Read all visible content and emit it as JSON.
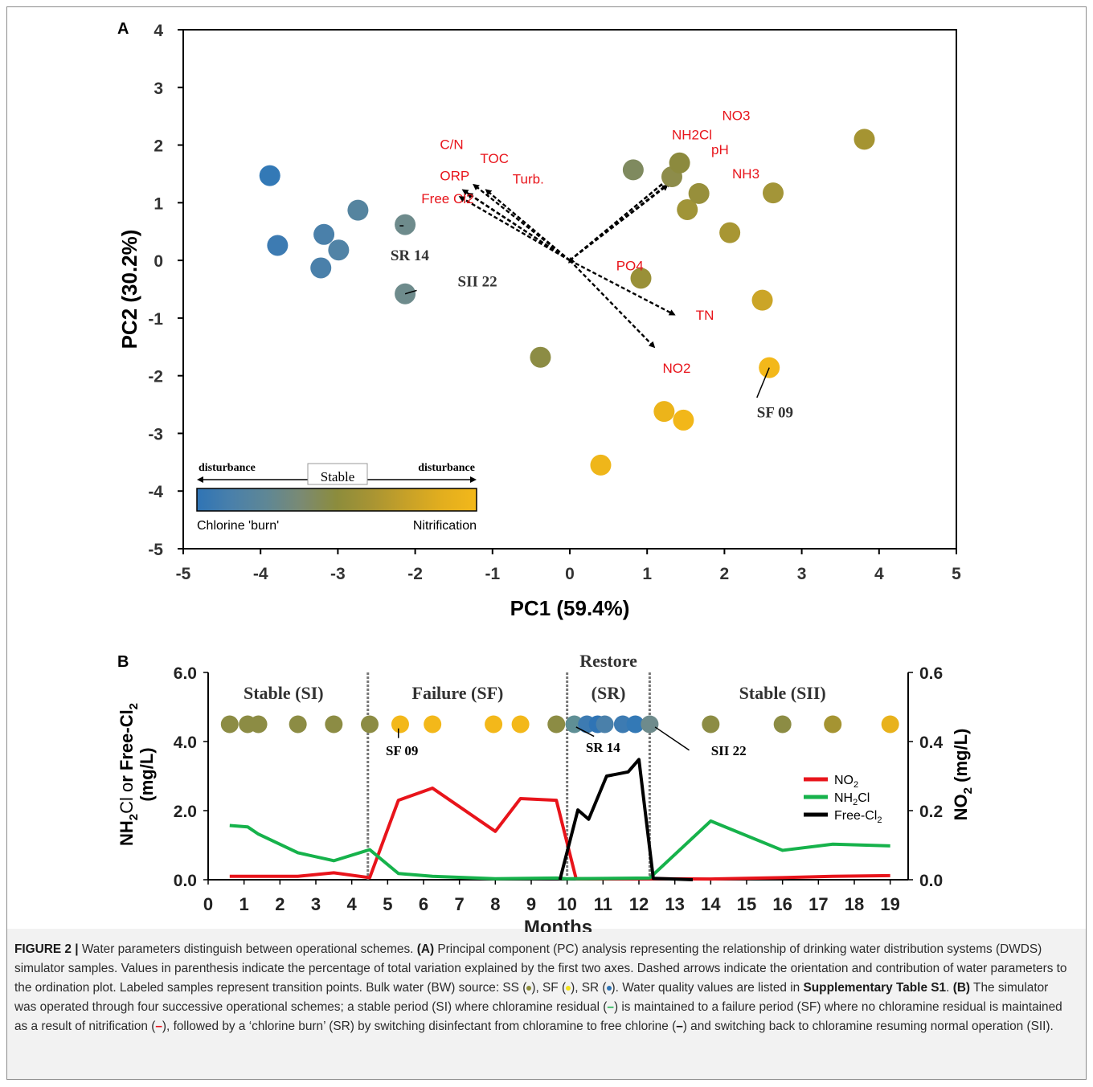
{
  "colors": {
    "ss": "#8c8c3c",
    "sf": "#f3b81a",
    "sr": "#2f74b5",
    "no2": "#e8141b",
    "nh2cl": "#16b24b",
    "free_cl2": "#000000",
    "loading_label": "#e8141b",
    "sample_label": "#333333"
  },
  "chart_data": [
    {
      "id": "A",
      "type": "scatter",
      "panel_label": "A",
      "xlabel": "PC1 (59.4%)",
      "ylabel": "PC2 (30.2%)",
      "xlim": [
        -5,
        5
      ],
      "ylim": [
        -5,
        4
      ],
      "xticks": [
        "-5",
        "-4",
        "-3",
        "-2",
        "-1",
        "0",
        "1",
        "2",
        "3",
        "4",
        "5"
      ],
      "yticks": [
        "-5",
        "-4",
        "-3",
        "-2",
        "-1",
        "0",
        "1",
        "2",
        "3",
        "4"
      ],
      "points": [
        {
          "x": -3.88,
          "y": 1.47,
          "color": "#3379b6"
        },
        {
          "x": -3.78,
          "y": 0.26,
          "color": "#3d7bb2"
        },
        {
          "x": -3.18,
          "y": 0.45,
          "color": "#4a80aa"
        },
        {
          "x": -3.22,
          "y": -0.13,
          "color": "#4a80aa"
        },
        {
          "x": -2.99,
          "y": 0.18,
          "color": "#5183a6"
        },
        {
          "x": -2.74,
          "y": 0.87,
          "color": "#55849f"
        },
        {
          "x": -2.13,
          "y": 0.62,
          "color": "#6e8b8c"
        },
        {
          "x": -2.13,
          "y": -0.58,
          "color": "#6e8b8c"
        },
        {
          "x": -0.38,
          "y": -1.68,
          "color": "#8c8c44"
        },
        {
          "x": 0.82,
          "y": 1.57,
          "color": "#7f8a5f"
        },
        {
          "x": 0.92,
          "y": -0.31,
          "color": "#999038"
        },
        {
          "x": 1.32,
          "y": 1.45,
          "color": "#8d8c4a"
        },
        {
          "x": 1.42,
          "y": 1.69,
          "color": "#8c8a3e"
        },
        {
          "x": 1.52,
          "y": 0.88,
          "color": "#a09438"
        },
        {
          "x": 1.67,
          "y": 1.16,
          "color": "#978f3b"
        },
        {
          "x": 2.07,
          "y": 0.48,
          "color": "#a89633"
        },
        {
          "x": 2.63,
          "y": 1.17,
          "color": "#a39538"
        },
        {
          "x": 2.49,
          "y": -0.69,
          "color": "#cba527"
        },
        {
          "x": 3.81,
          "y": 2.1,
          "color": "#a59432"
        },
        {
          "x": 2.58,
          "y": -1.86,
          "color": "#f3b81a"
        },
        {
          "x": 1.22,
          "y": -2.62,
          "color": "#ecb41a"
        },
        {
          "x": 1.47,
          "y": -2.77,
          "color": "#f2b719"
        },
        {
          "x": 0.4,
          "y": -3.55,
          "color": "#efb61a"
        }
      ],
      "loadings": [
        {
          "label": "C/N",
          "x": -1.24,
          "y": 1.31,
          "lx": -1.68,
          "ly": 1.93
        },
        {
          "label": "TOC",
          "x": -1.08,
          "y": 1.22,
          "lx": -1.16,
          "ly": 1.69
        },
        {
          "label": "ORP",
          "x": -1.38,
          "y": 1.22,
          "lx": -1.68,
          "ly": 1.39
        },
        {
          "label": "Turb.",
          "x": -1.32,
          "y": 1.16,
          "lx": -0.74,
          "ly": 1.33
        },
        {
          "label": "Free Cl2",
          "x": -1.42,
          "y": 1.1,
          "lx": -1.92,
          "ly": 0.99
        },
        {
          "label": "NH2Cl",
          "x": 1.28,
          "y": 1.42,
          "lx": 1.32,
          "ly": 2.1
        },
        {
          "label": "NO3",
          "x": 1.3,
          "y": 1.36,
          "lx": 1.97,
          "ly": 2.43
        },
        {
          "label": "pH",
          "x": 1.26,
          "y": 1.3,
          "lx": 1.83,
          "ly": 1.84
        },
        {
          "label": "NH3",
          "x": 1.32,
          "y": 1.46,
          "lx": 2.1,
          "ly": 1.42
        },
        {
          "label": "PO4",
          "x": 0.05,
          "y": -0.02,
          "lx": 0.6,
          "ly": -0.17
        },
        {
          "label": "TN",
          "x": 1.35,
          "y": -0.94,
          "lx": 1.63,
          "ly": -1.03
        },
        {
          "label": "NO2",
          "x": 1.09,
          "y": -1.5,
          "lx": 1.2,
          "ly": -1.95
        }
      ],
      "annotations": [
        {
          "text": "SR 14",
          "tx": -2.32,
          "ty": 0.0,
          "px": -2.2,
          "py": 0.6,
          "sx": -2.15,
          "sy": 0.6
        },
        {
          "text": "SII 22",
          "tx": -1.45,
          "ty": -0.45,
          "px": -1.98,
          "py": -0.52,
          "sx": -2.13,
          "sy": -0.58
        },
        {
          "text": "SF 09",
          "tx": 2.42,
          "ty": -2.72,
          "px": 2.42,
          "py": -2.38,
          "sx": 2.58,
          "sy": -1.86
        }
      ],
      "legend_bar": {
        "left_top": "disturbance",
        "center_top": "Stable",
        "right_top": "disturbance",
        "left_bottom": "Chlorine 'burn'",
        "right_bottom": "Nitrification",
        "gradient": [
          "#2f74b5",
          "#4a80aa",
          "#5f8795",
          "#7b8a72",
          "#8c8c3c",
          "#a89433",
          "#c7a128",
          "#e2ae1e",
          "#f3b81a"
        ]
      }
    },
    {
      "id": "B",
      "type": "line",
      "panel_label": "B",
      "xlabel": "Months",
      "ylabel_left": [
        "NH",
        "2",
        "Cl or Free-Cl",
        "2",
        "(mg/L)"
      ],
      "ylabel_right": [
        "NO",
        "2",
        " (mg/L)"
      ],
      "xlim": [
        0,
        19.5
      ],
      "ylim_left": [
        0,
        6
      ],
      "ylim_right": [
        0,
        0.6
      ],
      "xticks": [
        "0",
        "1",
        "2",
        "3",
        "4",
        "5",
        "6",
        "7",
        "8",
        "9",
        "10",
        "11",
        "12",
        "13",
        "14",
        "15",
        "16",
        "17",
        "18",
        "19"
      ],
      "yticks_left": [
        "0.0",
        "2.0",
        "4.0",
        "6.0"
      ],
      "yticks_right": [
        "0.0",
        "0.2",
        "0.4",
        "0.6"
      ],
      "phase_dividers": [
        4.45,
        10.0,
        12.3
      ],
      "phase_labels": [
        {
          "text": "Stable (SI)",
          "x": 2.1
        },
        {
          "text": "Failure (SF)",
          "x": 6.95
        },
        {
          "text": "(SR)",
          "x": 11.15
        },
        {
          "text": "Stable (SII)",
          "x": 16.0
        }
      ],
      "restore_label": {
        "text": "Restore",
        "x": 11.15
      },
      "series": [
        {
          "name": "NO2",
          "legend": [
            "NO",
            "2"
          ],
          "axis": "right",
          "color": "#e8141b",
          "x": [
            0.6,
            2.5,
            3.5,
            4.5,
            5.3,
            6.25,
            8.0,
            8.7,
            9.7,
            10.25,
            12.3,
            14.0,
            16.0,
            17.4,
            19.0
          ],
          "y": [
            0.01,
            0.01,
            0.02,
            0.006,
            0.23,
            0.265,
            0.14,
            0.235,
            0.23,
            0.003,
            0.003,
            0.002,
            0.006,
            0.01,
            0.012
          ]
        },
        {
          "name": "NH2Cl",
          "legend": [
            "NH",
            "2",
            "Cl"
          ],
          "axis": "left",
          "color": "#16b24b",
          "x": [
            0.6,
            1.1,
            1.4,
            2.5,
            3.5,
            4.5,
            5.3,
            6.25,
            8.0,
            9.7,
            10.0,
            12.3,
            14.0,
            16.0,
            17.4,
            19.0
          ],
          "y": [
            1.57,
            1.53,
            1.32,
            0.78,
            0.55,
            0.87,
            0.18,
            0.1,
            0.03,
            0.05,
            0.03,
            0.05,
            1.7,
            0.85,
            1.03,
            0.98
          ]
        },
        {
          "name": "Free-Cl2",
          "legend": [
            "Free-Cl",
            "2"
          ],
          "axis": "left",
          "color": "#000000",
          "x": [
            9.8,
            10.3,
            10.6,
            11.1,
            11.7,
            12.0,
            12.4,
            13.5
          ],
          "y": [
            0.0,
            2.02,
            1.75,
            3.0,
            3.12,
            3.48,
            0.04,
            0.0
          ]
        }
      ],
      "sample_dots": [
        {
          "x": 0.6,
          "color": "#8c8c44"
        },
        {
          "x": 1.1,
          "color": "#8c8c44"
        },
        {
          "x": 1.4,
          "color": "#8c8c44"
        },
        {
          "x": 2.5,
          "color": "#8c8c44"
        },
        {
          "x": 3.5,
          "color": "#8c8c44"
        },
        {
          "x": 4.5,
          "color": "#8c8c44"
        },
        {
          "x": 5.35,
          "color": "#f3b81a"
        },
        {
          "x": 6.25,
          "color": "#f3b81a"
        },
        {
          "x": 7.95,
          "color": "#f3b81a"
        },
        {
          "x": 8.7,
          "color": "#f3b81a"
        },
        {
          "x": 9.7,
          "color": "#8c8c44"
        },
        {
          "x": 10.2,
          "color": "#5f8f95"
        },
        {
          "x": 10.55,
          "color": "#3d7bb2"
        },
        {
          "x": 10.85,
          "color": "#2f74b5"
        },
        {
          "x": 11.05,
          "color": "#4a80aa"
        },
        {
          "x": 11.55,
          "color": "#3d7bb2"
        },
        {
          "x": 11.9,
          "color": "#3379b6"
        },
        {
          "x": 12.3,
          "color": "#6e8b8c"
        },
        {
          "x": 14.0,
          "color": "#8c8c44"
        },
        {
          "x": 16.0,
          "color": "#8c8c44"
        },
        {
          "x": 17.4,
          "color": "#a59432"
        },
        {
          "x": 19.0,
          "color": "#e8b21c"
        }
      ],
      "annotations": [
        {
          "text": "SF 09",
          "tx": 5.4,
          "ty": 3.6,
          "sx": 5.3,
          "sy": 4.38,
          "ex": 5.3,
          "ey": 4.1
        },
        {
          "text": "SR 14",
          "tx": 11.0,
          "ty": 3.7,
          "sx": 10.25,
          "sy": 4.42,
          "ex": 10.75,
          "ey": 4.15
        },
        {
          "text": "SII 22",
          "tx": 14.5,
          "ty": 3.6,
          "sx": 12.45,
          "sy": 4.42,
          "ex": 13.4,
          "ey": 3.75
        }
      ]
    }
  ],
  "caption": {
    "figure_label": "FIGURE 2 |",
    "sentence1": " Water parameters distinguish between operational schemes. ",
    "part_a_label": "(A)",
    "part_a_text": " Principal component (PC) analysis representing the relationship of drinking water distribution systems (DWDS) simulator samples. Values in parenthesis indicate the percentage of total variation explained by the first two axes. Dashed arrows indicate the orientation and contribution of water parameters to the ordination plot. Labeled samples represent transition points. Bulk water (BW) source: SS (",
    "ss_sep": "), SF (",
    "sf_sep": "), SR (",
    "sr_end": "). Water quality values are listed in ",
    "supp_table": "Supplementary Table S1",
    "dot_end": ". ",
    "part_b_label": "(B)",
    "part_b_text1": " The simulator was operated through four successive operational schemes; a stable period (SI) where chloramine residual (",
    "dash": "–",
    "part_b_text2": ") is maintained to a failure period (SF) where no chloramine residual is maintained as a result of nitrification (",
    "part_b_text3": "), followed by a ‘chlorine burn’ (SR) by switching disinfectant from chloramine to free chlorine (",
    "part_b_text4": ") and switching back to chloramine resuming normal operation (SII)."
  }
}
